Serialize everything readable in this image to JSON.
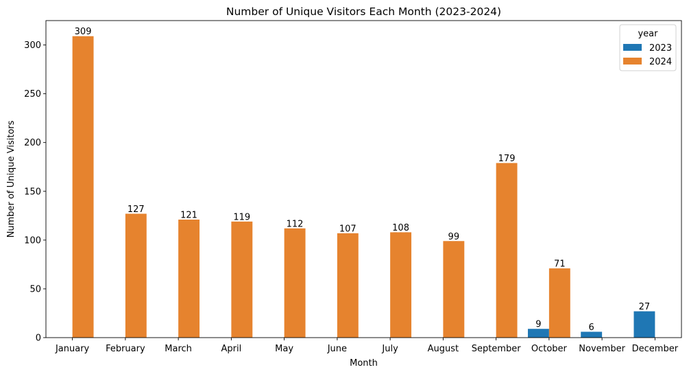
{
  "chart_data": {
    "type": "bar",
    "title": "Number of Unique Visitors Each Month (2023-2024)",
    "xlabel": "Month",
    "ylabel": "Number of Unique Visitors",
    "ylim": [
      0,
      325
    ],
    "yticks": [
      0,
      50,
      100,
      150,
      200,
      250,
      300
    ],
    "grid": false,
    "legend_title": "year",
    "legend_position": "top-right",
    "categories": [
      "January",
      "February",
      "March",
      "April",
      "May",
      "June",
      "July",
      "August",
      "September",
      "October",
      "November",
      "December"
    ],
    "series": [
      {
        "name": "2023",
        "color": "#1f77b4",
        "values": [
          null,
          null,
          null,
          null,
          null,
          null,
          null,
          null,
          null,
          9,
          6,
          27
        ]
      },
      {
        "name": "2024",
        "color": "#e6832e",
        "values": [
          309,
          127,
          121,
          119,
          112,
          107,
          108,
          99,
          179,
          71,
          null,
          null
        ]
      }
    ]
  }
}
